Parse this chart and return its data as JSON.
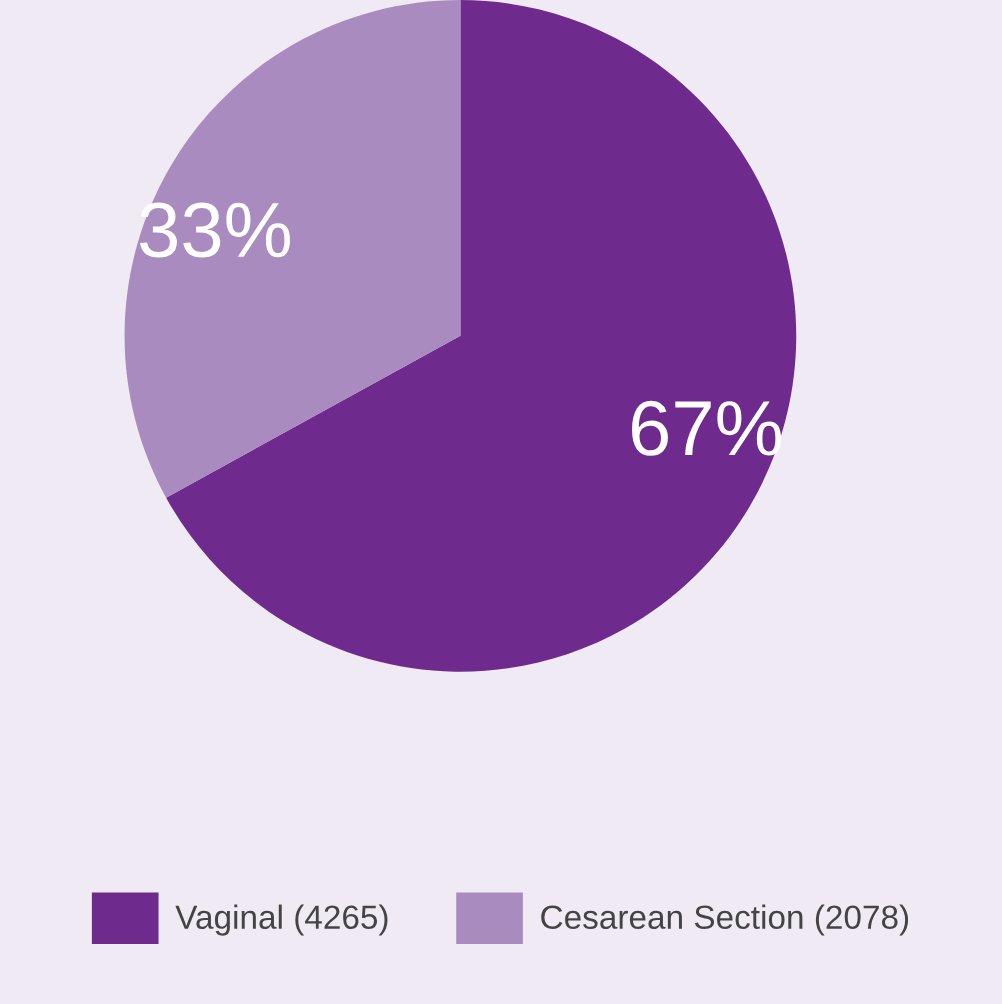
{
  "chart_data": {
    "type": "pie",
    "categories": [
      "Vaginal (4265)",
      "Cesarean Section (2078)"
    ],
    "values": [
      67,
      33
    ],
    "colors": [
      "#6e2a8c",
      "#a98bbf"
    ],
    "value_labels": [
      "67%",
      "33%"
    ],
    "legend": "bottom"
  }
}
